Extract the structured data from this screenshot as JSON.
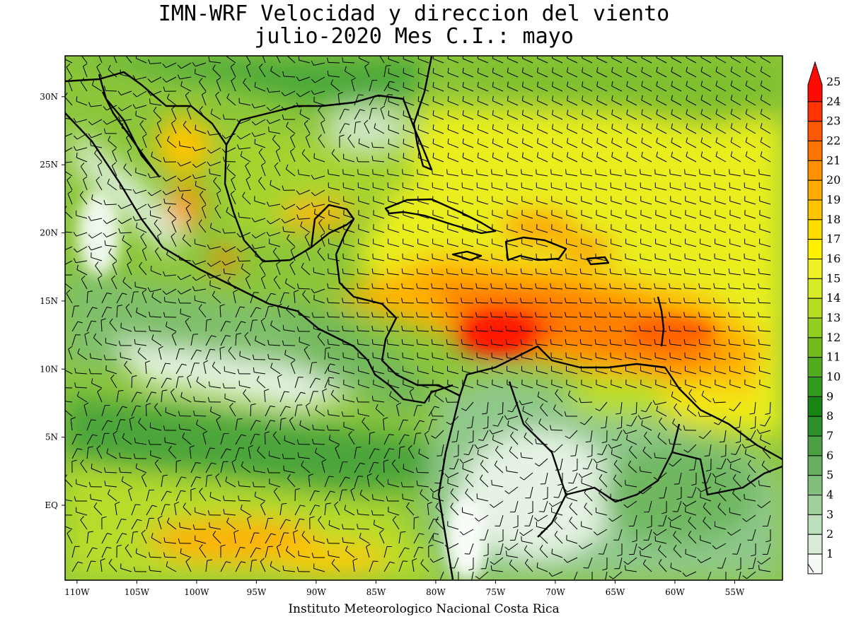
{
  "title": {
    "line1": "IMN-WRF Velocidad y direccion del viento",
    "line2": "julio-2020 Mes C.I.: mayo"
  },
  "credit": "Instituto Meteorologico Nacional Costa Rica",
  "axes": {
    "lon_range": [
      -111,
      -51
    ],
    "lat_range": [
      -5.5,
      33
    ],
    "x_ticks": [
      {
        "lon": -110,
        "label": "110W"
      },
      {
        "lon": -105,
        "label": "105W"
      },
      {
        "lon": -100,
        "label": "100W"
      },
      {
        "lon": -95,
        "label": "95W"
      },
      {
        "lon": -90,
        "label": "90W"
      },
      {
        "lon": -85,
        "label": "85W"
      },
      {
        "lon": -80,
        "label": "80W"
      },
      {
        "lon": -75,
        "label": "75W"
      },
      {
        "lon": -70,
        "label": "70W"
      },
      {
        "lon": -65,
        "label": "65W"
      },
      {
        "lon": -60,
        "label": "60W"
      },
      {
        "lon": -55,
        "label": "55W"
      }
    ],
    "y_ticks": [
      {
        "lat": 0,
        "label": "EQ"
      },
      {
        "lat": 5,
        "label": "5N"
      },
      {
        "lat": 10,
        "label": "10N"
      },
      {
        "lat": 15,
        "label": "15N"
      },
      {
        "lat": 20,
        "label": "20N"
      },
      {
        "lat": 25,
        "label": "25N"
      },
      {
        "lat": 30,
        "label": "30N"
      }
    ]
  },
  "colorbar": {
    "units_note": "",
    "levels": [
      {
        "label": "1",
        "color": "#f4faf3"
      },
      {
        "label": "2",
        "color": "#d8ecd5"
      },
      {
        "label": "3",
        "color": "#bcdeb8"
      },
      {
        "label": "4",
        "color": "#9fcf9a"
      },
      {
        "label": "5",
        "color": "#82bf7d"
      },
      {
        "label": "6",
        "color": "#66af61"
      },
      {
        "label": "7",
        "color": "#4b9f45"
      },
      {
        "label": "8",
        "color": "#2f8f2a"
      },
      {
        "label": "9",
        "color": "#1a8416"
      },
      {
        "label": "10",
        "color": "#309a1a"
      },
      {
        "label": "11",
        "color": "#52ab1c"
      },
      {
        "label": "12",
        "color": "#73bc1e"
      },
      {
        "label": "13",
        "color": "#95cd20"
      },
      {
        "label": "14",
        "color": "#b6dd22"
      },
      {
        "label": "15",
        "color": "#d6ec24"
      },
      {
        "label": "16",
        "color": "#eef326"
      },
      {
        "label": "17",
        "color": "#fff200"
      },
      {
        "label": "18",
        "color": "#ffdc00"
      },
      {
        "label": "19",
        "color": "#ffc400"
      },
      {
        "label": "20",
        "color": "#ffaa00"
      },
      {
        "label": "21",
        "color": "#ff9000"
      },
      {
        "label": "22",
        "color": "#ff7400"
      },
      {
        "label": "23",
        "color": "#ff5600"
      },
      {
        "label": "24",
        "color": "#ff3200"
      },
      {
        "label": "25",
        "color": "#ff0a00"
      }
    ]
  },
  "wind_maxima": [
    {
      "name": "caribbean-jet-core",
      "lon": -74.5,
      "lat": 13,
      "speed": 25
    },
    {
      "name": "caribbean-jet-east",
      "lon": -63,
      "lat": 14.5,
      "speed": 22
    },
    {
      "name": "hispaniola-east",
      "lon": -67,
      "lat": 19.5,
      "speed": 21
    },
    {
      "name": "southern-mexico",
      "lon": -98,
      "lat": 18,
      "speed": 21
    },
    {
      "name": "northern-mexico",
      "lon": -101.5,
      "lat": 26,
      "speed": 20
    },
    {
      "name": "pacific-south",
      "lon": -96,
      "lat": 1,
      "speed": 19
    }
  ]
}
